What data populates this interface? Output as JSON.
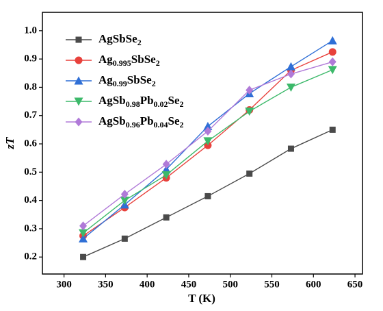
{
  "chart_data": {
    "type": "line",
    "xlabel": "T (K)",
    "ylabel": "zT",
    "x": [
      323,
      373,
      423,
      473,
      523,
      573,
      623
    ],
    "xlim": [
      274,
      659
    ],
    "xticks": [
      300,
      350,
      400,
      450,
      500,
      550,
      600,
      650
    ],
    "ylim": [
      0.14,
      1.065
    ],
    "yticks": [
      0.2,
      0.3,
      0.4,
      0.5,
      0.6,
      0.7,
      0.8,
      0.9,
      {
        "value": 1,
        "label": "1.0"
      }
    ],
    "legend": "upper left",
    "series": [
      {
        "name": "AgSbSe2",
        "color": "#4a4a4a",
        "marker": "square",
        "values": [
          0.2,
          0.265,
          0.34,
          0.415,
          0.495,
          0.583,
          0.65
        ]
      },
      {
        "name": "Ag0.995SbSe2",
        "color": "#e8413c",
        "marker": "circle",
        "values": [
          0.275,
          0.375,
          0.48,
          0.595,
          0.72,
          0.86,
          0.925
        ]
      },
      {
        "name": "Ag0.99SbSe2",
        "color": "#2f6fd6",
        "marker": "triangle-up",
        "values": [
          0.265,
          0.385,
          0.51,
          0.662,
          0.778,
          0.873,
          0.965
        ]
      },
      {
        "name": "AgSb0.98Pb0.02Se2",
        "color": "#3cb96a",
        "marker": "triangle-down",
        "values": [
          0.285,
          0.4,
          0.49,
          0.61,
          0.715,
          0.8,
          0.862
        ]
      },
      {
        "name": "AgSb0.96Pb0.04Se2",
        "color": "#b07ad8",
        "marker": "diamond",
        "values": [
          0.31,
          0.422,
          0.528,
          0.645,
          0.79,
          0.847,
          0.89
        ]
      }
    ]
  }
}
